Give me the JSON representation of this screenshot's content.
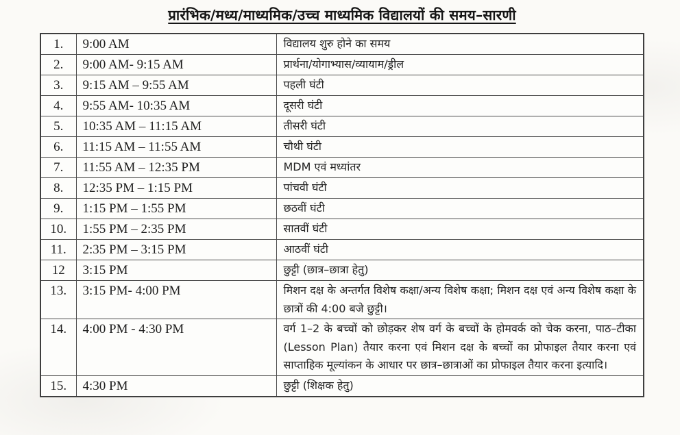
{
  "title": "प्रारंभिक/मध्य/माध्यमिक/उच्च माध्यमिक विद्यालयों की समय–सारणी",
  "colors": {
    "paper": "#fbfaf7",
    "ink": "#1d1d1d",
    "border": "#4a4a4a"
  },
  "table": {
    "rows": [
      {
        "sn": "1.",
        "time": "9:00 AM",
        "activity": "विद्यालय शुरु होने का समय"
      },
      {
        "sn": "2.",
        "time": "9:00 AM- 9:15 AM",
        "activity": "प्रार्थना/योगाभ्यास/व्यायाम/ड्रील"
      },
      {
        "sn": "3.",
        "time": "9:15 AM – 9:55 AM",
        "activity": "पहली घंटी"
      },
      {
        "sn": "4.",
        "time": "9:55 AM- 10:35 AM",
        "activity": "दूसरी घंटी"
      },
      {
        "sn": "5.",
        "time": "10:35 AM – 11:15 AM",
        "activity": "तीसरी घंटी"
      },
      {
        "sn": "6.",
        "time": "11:15 AM – 11:55 AM",
        "activity": "चौथी घंटी"
      },
      {
        "sn": "7.",
        "time": "11:55 AM – 12:35 PM",
        "activity": "MDM एवं मध्यांतर"
      },
      {
        "sn": "8.",
        "time": "12:35 PM – 1:15 PM",
        "activity": "पांचवी घंटी"
      },
      {
        "sn": "9.",
        "time": "1:15 PM – 1:55 PM",
        "activity": "छठवीं घंटी"
      },
      {
        "sn": "10.",
        "time": "1:55 PM – 2:35 PM",
        "activity": "सातवीं घंटी"
      },
      {
        "sn": "11.",
        "time": "2:35 PM – 3:15 PM",
        "activity": "आठवीं घंटी"
      },
      {
        "sn": "12",
        "time": "3:15 PM",
        "activity": "छुट्टी (छात्र–छात्रा हेतु)"
      },
      {
        "sn": "13.",
        "time": "3:15 PM- 4:00 PM",
        "activity": "मिशन दक्ष के अन्तर्गत विशेष कक्षा/अन्य विशेष कक्षा; मिशन दक्ष एवं अन्य विशेष कक्षा के छात्रों की 4:00 बजे छुट्टी।"
      },
      {
        "sn": "14.",
        "time": "4:00 PM - 4:30 PM",
        "activity": "वर्ग 1–2 के बच्चों को छोड़कर शेष वर्ग के बच्चों के होमवर्क को चेक करना, पाठ–टीका (Lesson Plan) तैयार करना एवं मिशन दक्ष के बच्चों का प्रोफाइल तैयार करना एवं साप्ताहिक मूल्यांकन के आधार पर छात्र–छात्राओं का प्रोफाइल तैयार करना इत्यादि।"
      },
      {
        "sn": "15.",
        "time": "4:30 PM",
        "activity": "छुट्टी (शिक्षक हेतु)"
      }
    ]
  }
}
